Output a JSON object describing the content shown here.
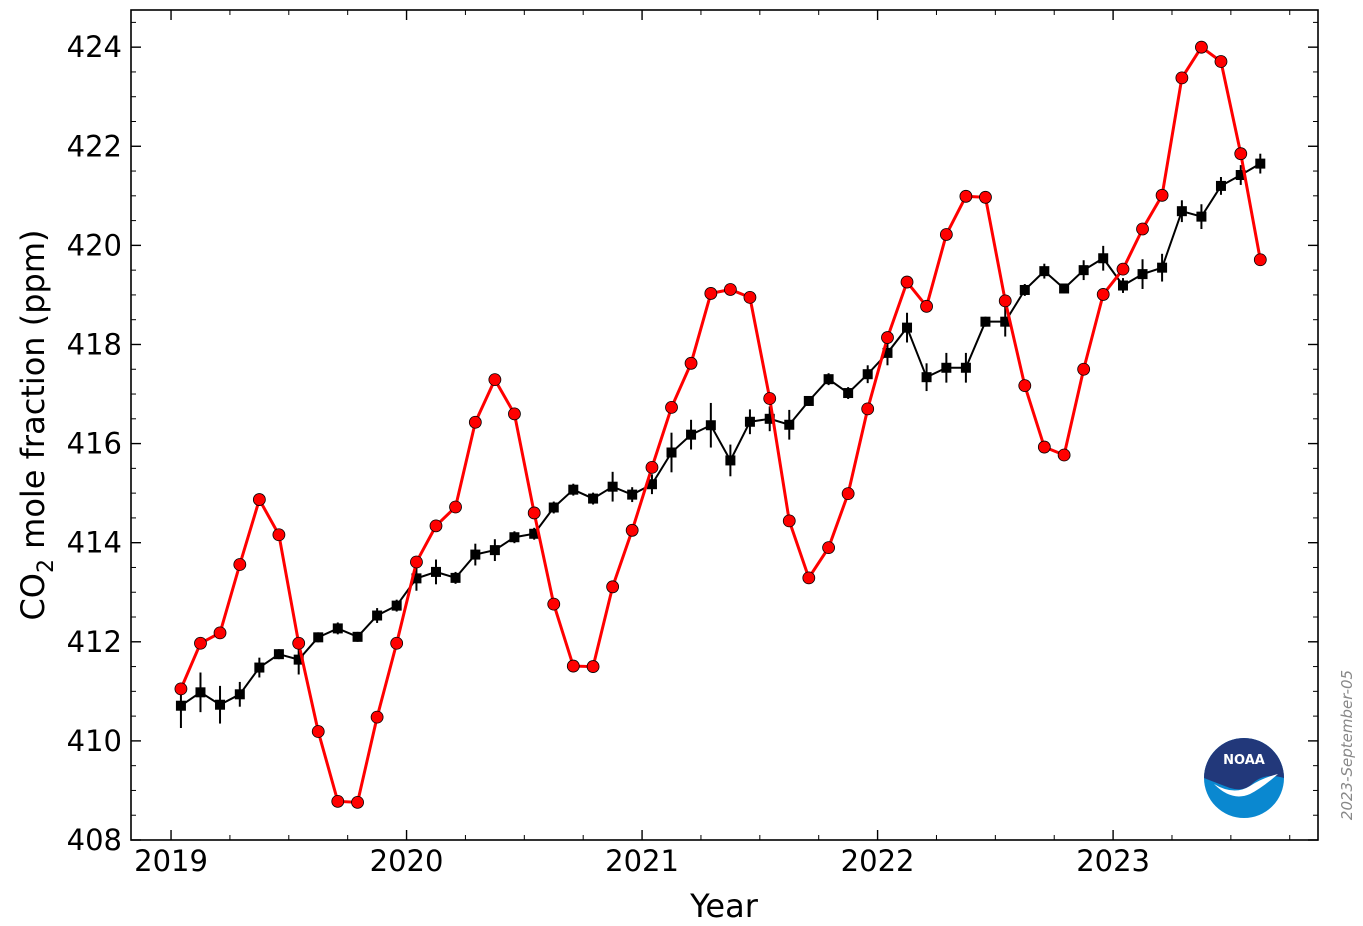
{
  "chart_data": {
    "type": "line",
    "title": "",
    "xlabel": "Year",
    "ylabel": "CO<sub>2</sub> mole fraction (ppm)",
    "ylabel_parts": {
      "pre": "CO",
      "sub": "2",
      "post": " mole fraction (ppm)"
    },
    "xlim": [
      2018.83,
      2023.87
    ],
    "ylim": [
      408,
      424.75
    ],
    "x_ticks": [
      2019,
      2020,
      2021,
      2022,
      2023
    ],
    "y_ticks": [
      408,
      410,
      412,
      414,
      416,
      418,
      420,
      422,
      424
    ],
    "grid": false,
    "legend": "none",
    "series": [
      {
        "color": "#ff0000",
        "marker": "circle",
        "x": [
          2019.042,
          2019.125,
          2019.208,
          2019.292,
          2019.375,
          2019.458,
          2019.542,
          2019.625,
          2019.708,
          2019.792,
          2019.875,
          2019.958,
          2020.042,
          2020.125,
          2020.208,
          2020.292,
          2020.375,
          2020.458,
          2020.542,
          2020.625,
          2020.708,
          2020.792,
          2020.875,
          2020.958,
          2021.042,
          2021.125,
          2021.208,
          2021.292,
          2021.375,
          2021.458,
          2021.542,
          2021.625,
          2021.708,
          2021.792,
          2021.875,
          2021.958,
          2022.042,
          2022.125,
          2022.208,
          2022.292,
          2022.375,
          2022.458,
          2022.542,
          2022.625,
          2022.708,
          2022.792,
          2022.875,
          2022.958,
          2023.042,
          2023.125,
          2023.208,
          2023.292,
          2023.375,
          2023.458,
          2023.542,
          2023.625
        ],
        "values": [
          411.05,
          411.97,
          412.18,
          413.56,
          414.87,
          414.16,
          411.97,
          410.19,
          408.78,
          408.76,
          410.48,
          411.97,
          413.61,
          414.34,
          414.72,
          416.43,
          417.29,
          416.6,
          414.6,
          412.76,
          411.51,
          411.5,
          413.11,
          414.25,
          415.52,
          416.73,
          417.62,
          419.03,
          419.11,
          418.95,
          416.91,
          414.44,
          413.29,
          413.9,
          414.99,
          416.7,
          418.14,
          419.26,
          418.77,
          420.22,
          420.99,
          420.97,
          418.88,
          417.17,
          415.93,
          415.77,
          417.5,
          419.01,
          419.52,
          420.33,
          421.01,
          423.38,
          424.0,
          423.71,
          421.85,
          419.71
        ]
      },
      {
        "color": "#000000",
        "marker": "square",
        "x": [
          2019.042,
          2019.125,
          2019.208,
          2019.292,
          2019.375,
          2019.458,
          2019.542,
          2019.625,
          2019.708,
          2019.792,
          2019.875,
          2019.958,
          2020.042,
          2020.125,
          2020.208,
          2020.292,
          2020.375,
          2020.458,
          2020.542,
          2020.625,
          2020.708,
          2020.792,
          2020.875,
          2020.958,
          2021.042,
          2021.125,
          2021.208,
          2021.292,
          2021.375,
          2021.458,
          2021.542,
          2021.625,
          2021.708,
          2021.792,
          2021.875,
          2021.958,
          2022.042,
          2022.125,
          2022.208,
          2022.292,
          2022.375,
          2022.458,
          2022.542,
          2022.625,
          2022.708,
          2022.792,
          2022.875,
          2022.958,
          2023.042,
          2023.125,
          2023.208,
          2023.292,
          2023.375,
          2023.458,
          2023.542,
          2023.625
        ],
        "values": [
          410.71,
          410.98,
          410.73,
          410.94,
          411.48,
          411.75,
          411.64,
          412.09,
          412.27,
          412.1,
          412.53,
          412.73,
          413.28,
          413.41,
          413.29,
          413.76,
          413.85,
          414.11,
          414.18,
          414.71,
          415.07,
          414.89,
          415.13,
          414.97,
          415.18,
          415.82,
          416.18,
          416.37,
          415.66,
          416.44,
          416.5,
          416.38,
          416.86,
          417.3,
          417.02,
          417.4,
          417.83,
          418.34,
          417.34,
          417.53,
          417.53,
          418.46,
          418.46,
          419.1,
          419.48,
          419.13,
          419.5,
          419.74,
          419.19,
          419.42,
          419.55,
          420.69,
          420.58,
          421.2,
          421.42,
          421.65
        ],
        "errors": [
          0.45,
          0.4,
          0.38,
          0.25,
          0.2,
          0.1,
          0.3,
          0.1,
          0.12,
          0.1,
          0.15,
          0.12,
          0.25,
          0.25,
          0.12,
          0.22,
          0.22,
          0.12,
          0.12,
          0.12,
          0.12,
          0.12,
          0.3,
          0.15,
          0.2,
          0.4,
          0.3,
          0.45,
          0.32,
          0.25,
          0.25,
          0.3,
          0.1,
          0.12,
          0.12,
          0.18,
          0.25,
          0.3,
          0.28,
          0.3,
          0.3,
          0.1,
          0.3,
          0.12,
          0.15,
          0.1,
          0.2,
          0.25,
          0.15,
          0.3,
          0.28,
          0.22,
          0.25,
          0.18,
          0.2,
          0.2
        ]
      }
    ]
  },
  "annotations": {
    "date_stamp": "2023-September-05",
    "logo_text": "NOAA"
  }
}
